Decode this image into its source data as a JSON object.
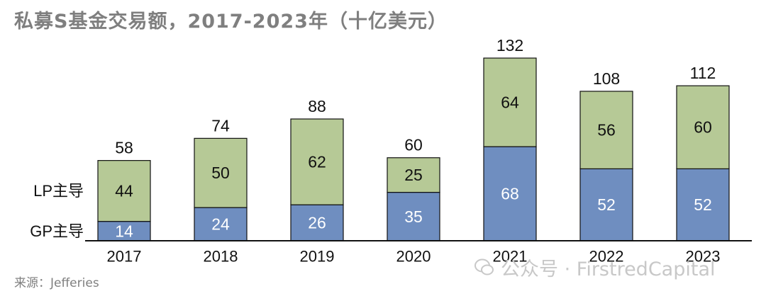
{
  "title": "私募S基金交易额，2017-2023年（十亿美元）",
  "source": "来源：Jefferies",
  "watermark": "公众号 · FirstredCapital",
  "colors": {
    "gp": "#6f8ec0",
    "lp": "#b6c996",
    "outline": "#111111",
    "text": "#111111",
    "gp_text": "#ffffff",
    "watermark": "#c8c8c8"
  },
  "chart_data": {
    "type": "bar",
    "stacked": true,
    "categories": [
      "2017",
      "2018",
      "2019",
      "2020",
      "2021",
      "2022",
      "2023"
    ],
    "series": [
      {
        "name": "GP主导",
        "values": [
          14,
          24,
          26,
          35,
          68,
          52,
          52
        ]
      },
      {
        "name": "LP主导",
        "values": [
          44,
          50,
          62,
          25,
          64,
          56,
          60
        ]
      }
    ],
    "totals": [
      58,
      74,
      88,
      60,
      132,
      108,
      112
    ],
    "ylim": [
      0,
      132
    ],
    "grid": false,
    "legend_position": "left"
  }
}
